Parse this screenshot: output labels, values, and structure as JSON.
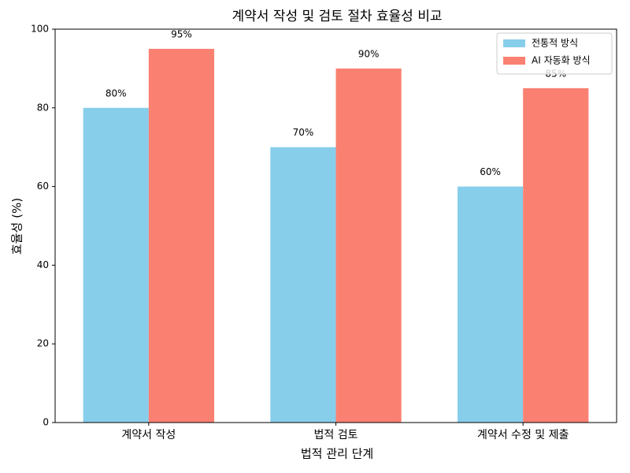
{
  "chart_data": {
    "type": "bar",
    "title": "계약서 작성 및 검토 절차 효율성 비교",
    "xlabel": "법적 관리 단계",
    "ylabel": "효율성 (%)",
    "categories": [
      "계약서 작성",
      "법적 검토",
      "계약서 수정 및 제출"
    ],
    "series": [
      {
        "name": "전통적 방식",
        "color": "#87ceeb",
        "values": [
          80,
          70,
          60
        ],
        "value_labels": [
          "80%",
          "70%",
          "60%"
        ]
      },
      {
        "name": "AI 자동화 방식",
        "color": "#fa8072",
        "values": [
          95,
          90,
          85
        ],
        "value_labels": [
          "95%",
          "90%",
          "85%"
        ]
      }
    ],
    "ylim": [
      0,
      100
    ],
    "yticks": [
      0,
      20,
      40,
      60,
      80,
      100
    ],
    "grid": false,
    "legend": "upper right"
  }
}
